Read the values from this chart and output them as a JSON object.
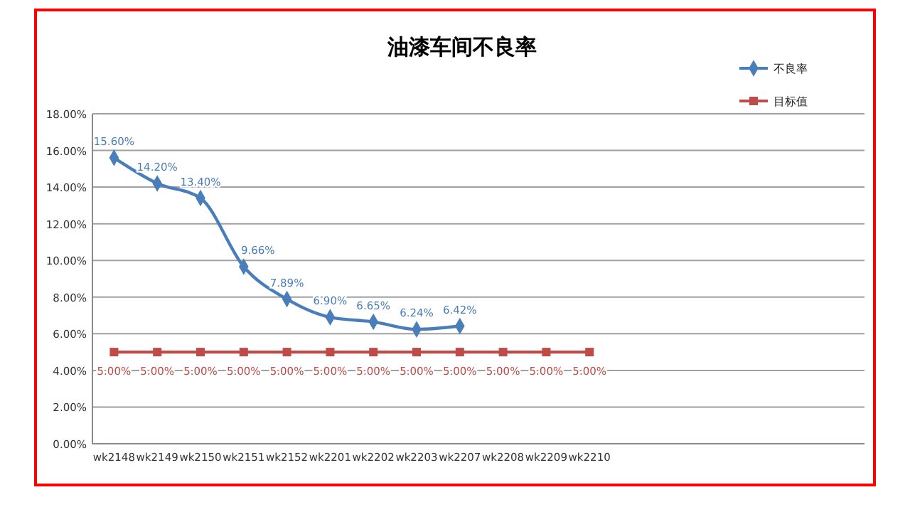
{
  "chart_data": {
    "type": "line",
    "title": "油漆车间不良率",
    "categories": [
      "wk2148",
      "wk2149",
      "wk2150",
      "wk2151",
      "wk2152",
      "wk2201",
      "wk2202",
      "wk2203",
      "wk2207",
      "wk2208",
      "wk2209",
      "wk2210"
    ],
    "series": [
      {
        "name": "不良率",
        "color": "#4a7ebb",
        "marker": "diamond",
        "values": [
          15.6,
          14.2,
          13.4,
          9.66,
          7.89,
          6.9,
          6.65,
          6.24,
          6.42,
          null,
          null,
          null
        ],
        "value_labels": [
          "15.60%",
          "14.20%",
          "13.40%",
          "9.66%",
          "7.89%",
          "6.90%",
          "6.65%",
          "6.24%",
          "6.42%",
          null,
          null,
          null
        ]
      },
      {
        "name": "目标值",
        "color": "#be4b48",
        "marker": "square",
        "values": [
          5,
          5,
          5,
          5,
          5,
          5,
          5,
          5,
          5,
          5,
          5,
          5
        ],
        "value_labels": [
          "5.00%",
          "5.00%",
          "5.00%",
          "5.00%",
          "5.00%",
          "5.00%",
          "5.00%",
          "5.00%",
          "5.00%",
          "5.00%",
          "5.00%",
          "5.00%"
        ]
      }
    ],
    "ylim": [
      0,
      18
    ],
    "yticks": [
      {
        "value": 0,
        "label": "0.00%"
      },
      {
        "value": 2,
        "label": "2.00%"
      },
      {
        "value": 4,
        "label": "4.00%"
      },
      {
        "value": 6,
        "label": "6.00%"
      },
      {
        "value": 8,
        "label": "8.00%"
      },
      {
        "value": 10,
        "label": "10.00%"
      },
      {
        "value": 12,
        "label": "12.00%"
      },
      {
        "value": 14,
        "label": "14.00%"
      },
      {
        "value": 16,
        "label": "16.00%"
      },
      {
        "value": 18,
        "label": "18.00%"
      }
    ],
    "grid": "y",
    "legend": "top right"
  }
}
